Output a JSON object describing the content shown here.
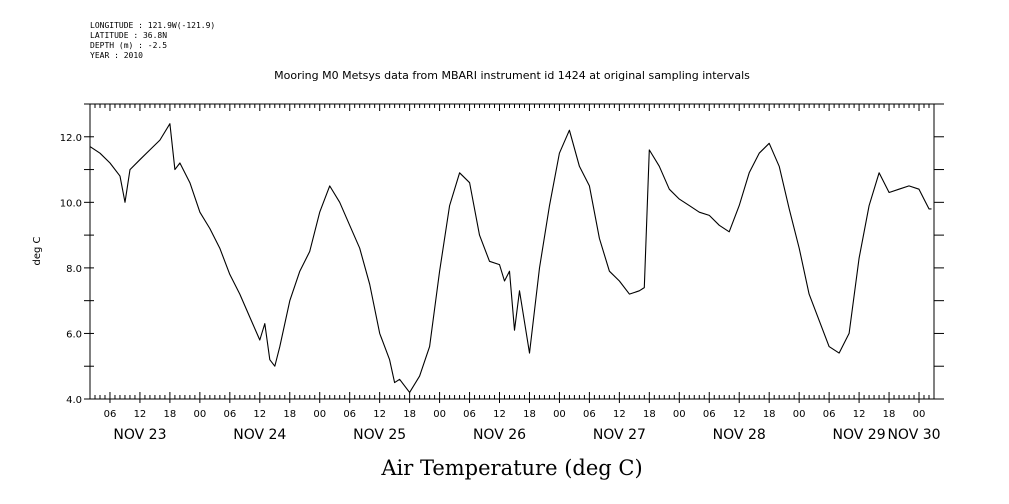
{
  "header": {
    "longitude": "LONGITUDE : 121.9W(-121.9)",
    "latitude": "LATITUDE : 36.8N",
    "depth": "DEPTH (m) : -2.5",
    "year": "YEAR : 2010"
  },
  "chart_data": {
    "type": "line",
    "title": "Mooring M0 Metsys data from MBARI instrument id 1424 at original sampling intervals",
    "xlabel": "Air Temperature (deg C)",
    "ylabel": "deg C",
    "ylim": [
      4.0,
      13.0
    ],
    "xlim": [
      "2010-11-23T02:00",
      "2010-11-30T03:00"
    ],
    "y_ticks": [
      "4.0",
      "6.0",
      "8.0",
      "10.0",
      "12.0"
    ],
    "hour_tick_labels": [
      "06",
      "12",
      "18",
      "00",
      "06",
      "12",
      "18",
      "00",
      "06",
      "12",
      "18",
      "00",
      "06",
      "12",
      "18",
      "00",
      "06",
      "12",
      "18",
      "00",
      "06",
      "12",
      "18",
      "00",
      "06",
      "12",
      "18",
      "00"
    ],
    "day_labels": [
      "NOV 23",
      "NOV 24",
      "NOV 25",
      "NOV 26",
      "NOV 27",
      "NOV 28",
      "NOV 29",
      "NOV 30"
    ],
    "grid": false,
    "series": [
      {
        "x": [
          "2010-11-23T02:00",
          "2010-11-23T04:00",
          "2010-11-23T06:00",
          "2010-11-23T08:00",
          "2010-11-23T09:00",
          "2010-11-23T10:00",
          "2010-11-23T12:00",
          "2010-11-23T14:00",
          "2010-11-23T16:00",
          "2010-11-23T18:00",
          "2010-11-23T19:00",
          "2010-11-23T20:00",
          "2010-11-23T22:00",
          "2010-11-24T00:00",
          "2010-11-24T02:00",
          "2010-11-24T04:00",
          "2010-11-24T06:00",
          "2010-11-24T08:00",
          "2010-11-24T10:00",
          "2010-11-24T12:00",
          "2010-11-24T13:00",
          "2010-11-24T14:00",
          "2010-11-24T15:00",
          "2010-11-24T16:00",
          "2010-11-24T18:00",
          "2010-11-24T20:00",
          "2010-11-24T22:00",
          "2010-11-25T00:00",
          "2010-11-25T02:00",
          "2010-11-25T04:00",
          "2010-11-25T06:00",
          "2010-11-25T08:00",
          "2010-11-25T10:00",
          "2010-11-25T12:00",
          "2010-11-25T14:00",
          "2010-11-25T15:00",
          "2010-11-25T16:00",
          "2010-11-25T18:00",
          "2010-11-25T20:00",
          "2010-11-25T22:00",
          "2010-11-26T00:00",
          "2010-11-26T02:00",
          "2010-11-26T04:00",
          "2010-11-26T06:00",
          "2010-11-26T08:00",
          "2010-11-26T10:00",
          "2010-11-26T12:00",
          "2010-11-26T13:00",
          "2010-11-26T14:00",
          "2010-11-26T15:00",
          "2010-11-26T16:00",
          "2010-11-26T18:00",
          "2010-11-26T20:00",
          "2010-11-26T22:00",
          "2010-11-27T00:00",
          "2010-11-27T02:00",
          "2010-11-27T04:00",
          "2010-11-27T06:00",
          "2010-11-27T08:00",
          "2010-11-27T10:00",
          "2010-11-27T12:00",
          "2010-11-27T14:00",
          "2010-11-27T16:00",
          "2010-11-27T17:00",
          "2010-11-27T18:00",
          "2010-11-27T20:00",
          "2010-11-27T22:00",
          "2010-11-28T00:00",
          "2010-11-28T02:00",
          "2010-11-28T04:00",
          "2010-11-28T06:00",
          "2010-11-28T08:00",
          "2010-11-28T10:00",
          "2010-11-28T12:00",
          "2010-11-28T14:00",
          "2010-11-28T16:00",
          "2010-11-28T18:00",
          "2010-11-28T20:00",
          "2010-11-28T22:00",
          "2010-11-29T00:00",
          "2010-11-29T02:00",
          "2010-11-29T04:00",
          "2010-11-29T06:00",
          "2010-11-29T08:00",
          "2010-11-29T10:00",
          "2010-11-29T12:00",
          "2010-11-29T14:00",
          "2010-11-29T16:00",
          "2010-11-29T18:00",
          "2010-11-29T20:00",
          "2010-11-29T22:00",
          "2010-11-30T00:00",
          "2010-11-30T01:00",
          "2010-11-30T02:00",
          "2010-11-30T02:30"
        ],
        "y": [
          11.7,
          11.5,
          11.2,
          10.8,
          10.0,
          11.0,
          11.3,
          11.6,
          11.9,
          12.4,
          11.0,
          11.2,
          10.6,
          9.7,
          9.2,
          8.6,
          7.8,
          7.2,
          6.5,
          5.8,
          6.3,
          5.2,
          5.0,
          5.6,
          7.0,
          7.9,
          8.5,
          9.7,
          10.5,
          10.0,
          9.3,
          8.6,
          7.5,
          6.0,
          5.2,
          4.5,
          4.6,
          4.2,
          4.7,
          5.6,
          7.9,
          9.9,
          10.9,
          10.6,
          9.0,
          8.2,
          8.1,
          7.6,
          7.9,
          6.1,
          7.3,
          5.4,
          8.0,
          9.9,
          11.5,
          12.2,
          11.1,
          10.5,
          8.9,
          7.9,
          7.6,
          7.2,
          7.3,
          7.4,
          11.6,
          11.1,
          10.4,
          10.1,
          9.9,
          9.7,
          9.6,
          9.3,
          9.1,
          9.9,
          10.9,
          11.5,
          11.8,
          11.1,
          9.8,
          8.6,
          7.2,
          6.4,
          5.6,
          5.4,
          6.0,
          8.3,
          9.9,
          10.9,
          10.3,
          10.4,
          10.5,
          10.4,
          10.1,
          9.8,
          9.8
        ]
      }
    ]
  }
}
